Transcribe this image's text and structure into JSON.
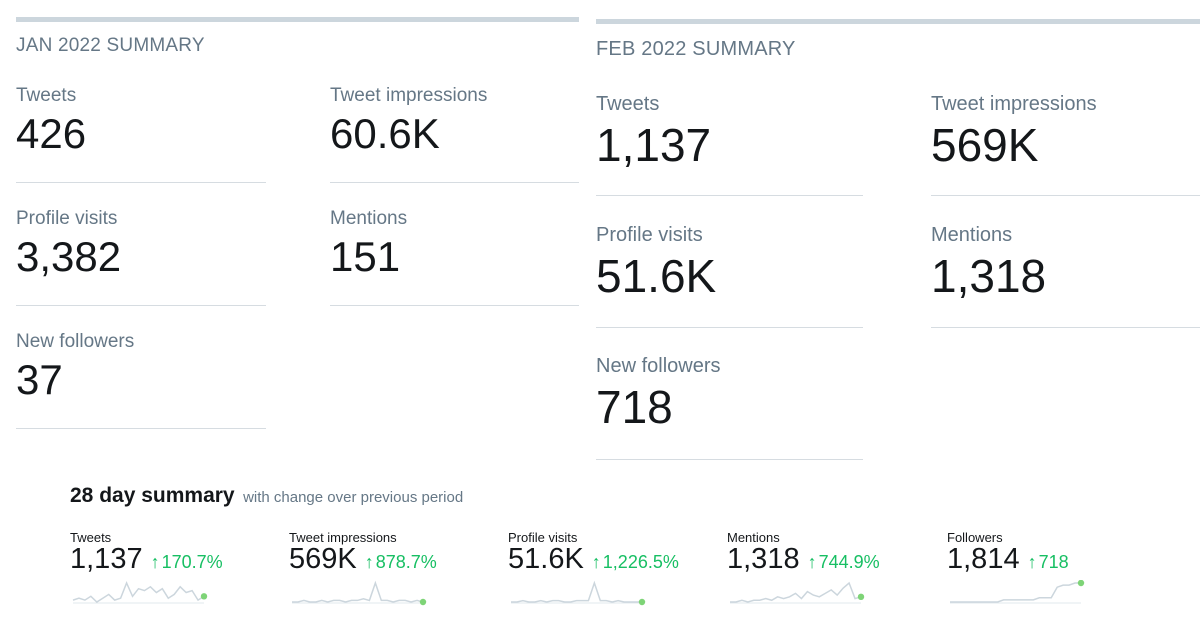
{
  "jan": {
    "title": "JAN 2022 SUMMARY",
    "stats": {
      "tweets": {
        "label": "Tweets",
        "value": "426"
      },
      "impressions": {
        "label": "Tweet impressions",
        "value": "60.6K"
      },
      "profile_visits": {
        "label": "Profile visits",
        "value": "3,382"
      },
      "mentions": {
        "label": "Mentions",
        "value": "151"
      },
      "new_followers": {
        "label": "New followers",
        "value": "37"
      }
    }
  },
  "feb": {
    "title": "FEB 2022 SUMMARY",
    "stats": {
      "tweets": {
        "label": "Tweets",
        "value": "1,137"
      },
      "impressions": {
        "label": "Tweet impressions",
        "value": "569K"
      },
      "profile_visits": {
        "label": "Profile visits",
        "value": "51.6K"
      },
      "mentions": {
        "label": "Mentions",
        "value": "1,318"
      },
      "new_followers": {
        "label": "New followers",
        "value": "718"
      }
    }
  },
  "summary": {
    "title": "28 day summary",
    "subtitle": "with change over previous period",
    "metrics": [
      {
        "label": "Tweets",
        "value": "1,137",
        "change": "170.7%"
      },
      {
        "label": "Tweet impressions",
        "value": "569K",
        "change": "878.7%"
      },
      {
        "label": "Profile visits",
        "value": "51.6K",
        "change": "1,226.5%"
      },
      {
        "label": "Mentions",
        "value": "1,318",
        "change": "744.9%"
      },
      {
        "label": "Followers",
        "value": "1,814",
        "change": "718"
      }
    ],
    "sparklines": [
      [
        3,
        4,
        3,
        5,
        2,
        4,
        6,
        3,
        4,
        12,
        5,
        9,
        8,
        10,
        7,
        9,
        4,
        6,
        10,
        7,
        8,
        3,
        5
      ],
      [
        2,
        2,
        3,
        2,
        2,
        3,
        2,
        3,
        3,
        2,
        3,
        3,
        4,
        3,
        14,
        3,
        3,
        2,
        3,
        3,
        2,
        3,
        2
      ],
      [
        2,
        2,
        3,
        2,
        2,
        3,
        2,
        3,
        3,
        2,
        2,
        3,
        3,
        3,
        16,
        3,
        3,
        2,
        3,
        2,
        2,
        2,
        2
      ],
      [
        1,
        1,
        2,
        1,
        2,
        2,
        3,
        2,
        4,
        3,
        4,
        6,
        3,
        7,
        5,
        4,
        6,
        8,
        5,
        9,
        12,
        3,
        4
      ],
      [
        1,
        1,
        1,
        1,
        1,
        1,
        1,
        1,
        1,
        2,
        2,
        2,
        2,
        2,
        2,
        3,
        3,
        3,
        8,
        9,
        9,
        10,
        10
      ]
    ],
    "colors": {
      "up": "#17bf63",
      "line": "#ccd6dd",
      "dot": "#7ed477"
    },
    "icons": {
      "up": "up-arrow-icon"
    }
  }
}
